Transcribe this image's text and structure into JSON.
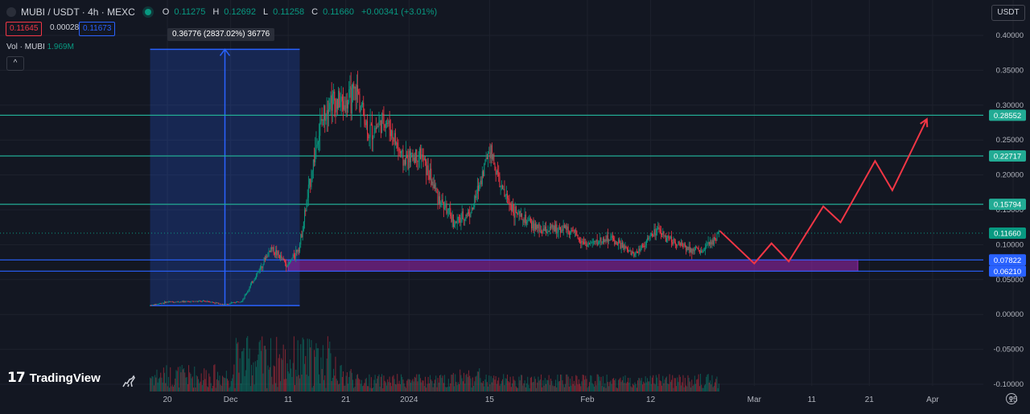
{
  "header": {
    "symbol": "MUBI / USDT · 4h · MEXC",
    "o_key": "O",
    "o_val": "0.11275",
    "h_key": "H",
    "h_val": "0.12692",
    "l_key": "L",
    "l_val": "0.11258",
    "c_key": "C",
    "c_val": "0.11660",
    "change": "+0.00341 (+3.01%)"
  },
  "price_boxes": {
    "bid": "0.11645",
    "spread": "0.00028",
    "ask": "0.11673"
  },
  "volume_legend": {
    "label": "Vol · MUBI",
    "value": "1.969M"
  },
  "collapse_label": "^",
  "currency_button": "USDT",
  "measure_tooltip": "0.36776 (2837.02%) 36776",
  "brand": {
    "mark": "17",
    "name": "TradingView"
  },
  "colors": {
    "background": "#131722",
    "up": "#089981",
    "down": "#f23645",
    "measure": "#2962ff",
    "zone": "#9c27b0",
    "projection": "#f23645",
    "level": "#22ab94"
  },
  "chart_data": {
    "type": "candlestick",
    "x_tick_labels": [
      "20",
      "Dec",
      "11",
      "21",
      "2024",
      "15",
      "Feb",
      "12",
      "Mar",
      "11",
      "21",
      "Apr",
      "15"
    ],
    "y_ticks": [
      0.4,
      0.35,
      0.3,
      0.25,
      0.2,
      0.15,
      0.1,
      0.05,
      0.0,
      -0.05,
      -0.1
    ],
    "y_tick_labels": [
      "0.40000",
      "0.35000",
      "0.30000",
      "0.25000",
      "0.20000",
      "0.15000",
      "0.10000",
      "0.05000",
      "0.00000",
      "-0.05000",
      "-0.10000"
    ],
    "ylim": [
      -0.105,
      0.41
    ],
    "current_price": 0.1166,
    "current_price_label": "0.11660",
    "horizontal_levels": [
      {
        "value": 0.28552,
        "label": "0.28552",
        "color": "#22ab94"
      },
      {
        "value": 0.22717,
        "label": "0.22717",
        "color": "#22ab94"
      },
      {
        "value": 0.15794,
        "label": "0.15794",
        "color": "#22ab94"
      },
      {
        "value": 0.07822,
        "label": "0.07822",
        "color": "#2962ff"
      },
      {
        "value": 0.0621,
        "label": "0.06210",
        "color": "#2962ff"
      }
    ],
    "price_path": [
      {
        "x": "Nov 17",
        "price": 0.013
      },
      {
        "x": "Nov 20",
        "price": 0.018
      },
      {
        "x": "Nov 27",
        "price": 0.019
      },
      {
        "x": "Nov 30",
        "price": 0.014
      },
      {
        "x": "Dec 3",
        "price": 0.02
      },
      {
        "x": "Dec 6",
        "price": 0.065
      },
      {
        "x": "Dec 8",
        "price": 0.096
      },
      {
        "x": "Dec 11",
        "price": 0.07
      },
      {
        "x": "Dec 13",
        "price": 0.1
      },
      {
        "x": "Dec 16",
        "price": 0.25
      },
      {
        "x": "Dec 18",
        "price": 0.31
      },
      {
        "x": "Dec 21",
        "price": 0.3
      },
      {
        "x": "Dec 23",
        "price": 0.32
      },
      {
        "x": "Dec 25",
        "price": 0.26
      },
      {
        "x": "Dec 28",
        "price": 0.28
      },
      {
        "x": "Dec 31",
        "price": 0.22
      },
      {
        "x": "Jan 3",
        "price": 0.23
      },
      {
        "x": "Jan 6",
        "price": 0.17
      },
      {
        "x": "Jan 9",
        "price": 0.13
      },
      {
        "x": "Jan 12",
        "price": 0.15
      },
      {
        "x": "Jan 15",
        "price": 0.24
      },
      {
        "x": "Jan 17",
        "price": 0.18
      },
      {
        "x": "Jan 20",
        "price": 0.14
      },
      {
        "x": "Jan 24",
        "price": 0.12
      },
      {
        "x": "Jan 28",
        "price": 0.125
      },
      {
        "x": "Feb 1",
        "price": 0.1
      },
      {
        "x": "Feb 5",
        "price": 0.11
      },
      {
        "x": "Feb 9",
        "price": 0.085
      },
      {
        "x": "Feb 13",
        "price": 0.12
      },
      {
        "x": "Feb 17",
        "price": 0.1
      },
      {
        "x": "Feb 21",
        "price": 0.09
      },
      {
        "x": "Feb 24",
        "price": 0.117
      }
    ],
    "measure_range": {
      "from": 0.0127,
      "to": 0.38
    },
    "demand_zone": {
      "low": 0.0621,
      "high": 0.07822
    },
    "projection_path": [
      {
        "x": "Feb 24",
        "price": 0.12
      },
      {
        "x": "Mar 1",
        "price": 0.073
      },
      {
        "x": "Mar 4",
        "price": 0.102
      },
      {
        "x": "Mar 7",
        "price": 0.076
      },
      {
        "x": "Mar 13",
        "price": 0.155
      },
      {
        "x": "Mar 16",
        "price": 0.132
      },
      {
        "x": "Mar 22",
        "price": 0.22
      },
      {
        "x": "Mar 25",
        "price": 0.178
      },
      {
        "x": "Mar 31",
        "price": 0.28
      }
    ],
    "grid": true
  }
}
